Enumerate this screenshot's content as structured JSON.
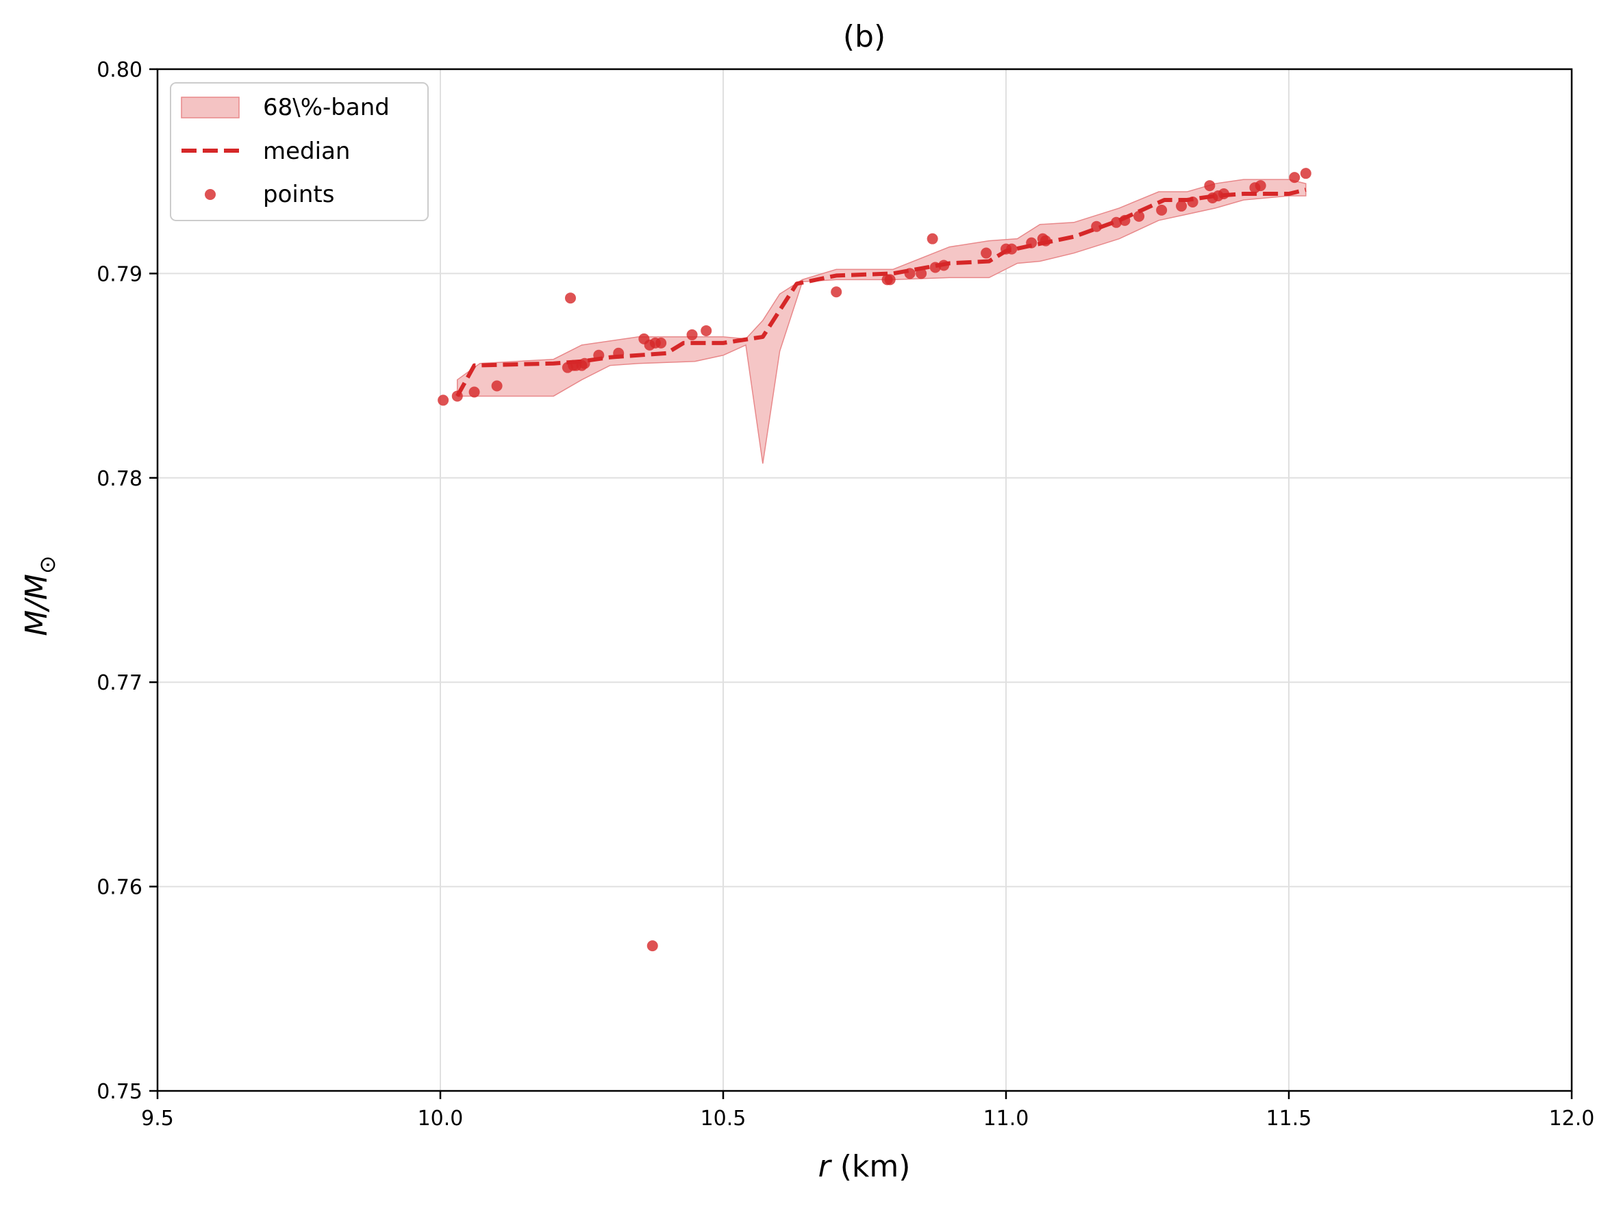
{
  "chart_data": {
    "type": "line",
    "title": "(b)",
    "xlabel_italic": "r",
    "xlabel_rest": " (km)",
    "ylabel_italic": "M/M",
    "ylabel_sub": "⊙",
    "xlim": [
      9.5,
      12.0
    ],
    "ylim": [
      0.75,
      0.8
    ],
    "x_ticks": [
      9.5,
      10.0,
      10.5,
      11.0,
      11.5,
      12.0
    ],
    "x_tick_labels": [
      "9.5",
      "10.0",
      "10.5",
      "11.0",
      "11.5",
      "12.0"
    ],
    "y_ticks": [
      0.75,
      0.76,
      0.77,
      0.78,
      0.79,
      0.8
    ],
    "y_tick_labels": [
      "0.75",
      "0.76",
      "0.77",
      "0.78",
      "0.79",
      "0.80"
    ],
    "grid": true,
    "legend_position": "upper-left",
    "colors": {
      "series": "#d62728",
      "band_fill": "#f4c3c3",
      "band_edge": "#e8888a",
      "grid": "#e0e0e0"
    },
    "legend": [
      {
        "label": "68\\%-band",
        "kind": "band"
      },
      {
        "label": "median",
        "kind": "dashed"
      },
      {
        "label": "points",
        "kind": "marker"
      }
    ],
    "band": {
      "x": [
        10.03,
        10.07,
        10.2,
        10.25,
        10.3,
        10.35,
        10.45,
        10.5,
        10.54,
        10.57,
        10.6,
        10.64,
        10.7,
        10.8,
        10.9,
        10.97,
        11.02,
        11.06,
        11.12,
        11.2,
        11.27,
        11.32,
        11.37,
        11.42,
        11.5,
        11.53
      ],
      "upper": [
        0.7848,
        0.7856,
        0.7858,
        0.7865,
        0.7867,
        0.7869,
        0.7869,
        0.7869,
        0.7868,
        0.7877,
        0.789,
        0.7897,
        0.7902,
        0.7902,
        0.7913,
        0.7916,
        0.7917,
        0.7924,
        0.7925,
        0.7932,
        0.794,
        0.794,
        0.7944,
        0.7946,
        0.7946,
        0.7944
      ],
      "lower": [
        0.784,
        0.784,
        0.784,
        0.7848,
        0.7855,
        0.7856,
        0.7857,
        0.786,
        0.7865,
        0.7807,
        0.7862,
        0.7896,
        0.7897,
        0.7897,
        0.7898,
        0.7898,
        0.7905,
        0.7906,
        0.791,
        0.7917,
        0.7926,
        0.7929,
        0.7932,
        0.7936,
        0.7938,
        0.7938
      ]
    },
    "median": {
      "x": [
        10.03,
        10.06,
        10.2,
        10.25,
        10.3,
        10.4,
        10.43,
        10.5,
        10.57,
        10.63,
        10.7,
        10.8,
        10.9,
        10.97,
        11.0,
        11.05,
        11.12,
        11.2,
        11.28,
        11.32,
        11.37,
        11.42,
        11.5,
        11.53
      ],
      "y": [
        0.784,
        0.7855,
        0.7856,
        0.7857,
        0.7859,
        0.7861,
        0.7866,
        0.7866,
        0.7869,
        0.7895,
        0.7899,
        0.79,
        0.7905,
        0.7906,
        0.7911,
        0.7914,
        0.7918,
        0.7926,
        0.7936,
        0.7936,
        0.7938,
        0.7939,
        0.7939,
        0.7941
      ]
    },
    "points": {
      "x": [
        10.005,
        10.03,
        10.06,
        10.1,
        10.225,
        10.23,
        10.235,
        10.24,
        10.25,
        10.255,
        10.28,
        10.315,
        10.36,
        10.37,
        10.375,
        10.38,
        10.39,
        10.445,
        10.47,
        10.7,
        10.79,
        10.795,
        10.83,
        10.85,
        10.87,
        10.875,
        10.89,
        10.965,
        11.0,
        11.01,
        11.045,
        11.065,
        11.07,
        11.16,
        11.195,
        11.21,
        11.235,
        11.275,
        11.31,
        11.33,
        11.36,
        11.365,
        11.375,
        11.385,
        11.44,
        11.45,
        11.51,
        11.53
      ],
      "y": [
        0.7838,
        0.784,
        0.7842,
        0.7845,
        0.7854,
        0.7888,
        0.7855,
        0.7855,
        0.7855,
        0.7856,
        0.786,
        0.7861,
        0.7868,
        0.7865,
        0.7571,
        0.7866,
        0.7866,
        0.787,
        0.7872,
        0.7891,
        0.7897,
        0.7897,
        0.79,
        0.79,
        0.7917,
        0.7903,
        0.7904,
        0.791,
        0.7912,
        0.7912,
        0.7915,
        0.7917,
        0.7916,
        0.7923,
        0.7925,
        0.7926,
        0.7928,
        0.7931,
        0.7933,
        0.7935,
        0.7943,
        0.7937,
        0.7938,
        0.7939,
        0.7942,
        0.7943,
        0.7947,
        0.7949
      ]
    }
  }
}
